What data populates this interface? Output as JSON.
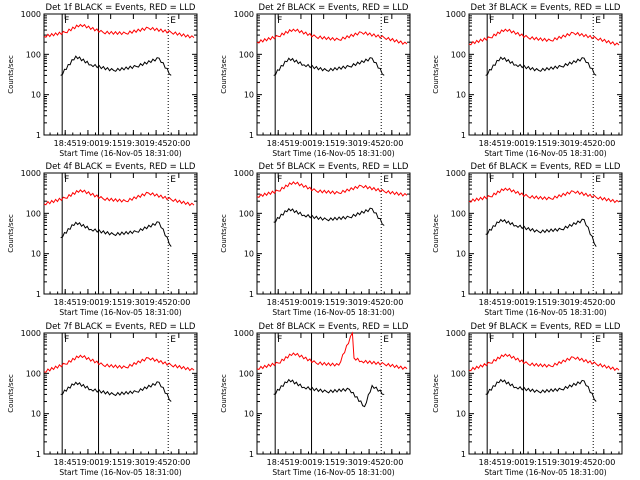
{
  "colors": {
    "events": "#000000",
    "lld": "#ff0000",
    "axes": "#000000",
    "background": "#ffffff"
  },
  "chart_data": [
    {
      "type": "line",
      "title": "Det 1f BLACK = Events, RED = LLD",
      "ylabel": "Counts/sec",
      "xlabel": "Start Time (16-Nov-05 18:31:00)",
      "xlim": [
        "18:31",
        "20:12"
      ],
      "ylim": [
        1,
        1000
      ],
      "yscale": "log",
      "xticks": [
        "18:45",
        "19:00",
        "19:15",
        "19:30",
        "19:45",
        "20:00"
      ],
      "yticks": [
        "1",
        "10",
        "100",
        "1000"
      ],
      "markers": [
        {
          "time": "18:43",
          "label": "F",
          "style": "solid"
        },
        {
          "time": "19:07",
          "label": "",
          "style": "solid"
        },
        {
          "time": "19:53",
          "label": "E",
          "style": "dotted"
        }
      ],
      "series": [
        {
          "name": "Events",
          "color": "#000000",
          "x": [
            "18:42",
            "18:52",
            "19:02",
            "19:17",
            "19:32",
            "19:47",
            "19:55"
          ],
          "values": [
            30,
            90,
            55,
            40,
            50,
            80,
            30
          ]
        },
        {
          "name": "LLD",
          "color": "#ff0000",
          "x": [
            "18:31",
            "18:45",
            "18:55",
            "19:10",
            "19:25",
            "19:40",
            "19:55",
            "20:10"
          ],
          "values": [
            280,
            350,
            550,
            350,
            330,
            450,
            350,
            260
          ]
        }
      ]
    },
    {
      "type": "line",
      "title": "Det 2f BLACK = Events, RED = LLD",
      "ylabel": "Counts/sec",
      "xlabel": "Start Time (16-Nov-05 18:31:00)",
      "xlim": [
        "18:31",
        "20:12"
      ],
      "ylim": [
        1,
        1000
      ],
      "yscale": "log",
      "xticks": [
        "18:45",
        "19:00",
        "19:15",
        "19:30",
        "19:45",
        "20:00"
      ],
      "yticks": [
        "1",
        "10",
        "100",
        "1000"
      ],
      "markers": [
        {
          "time": "18:43",
          "label": "F",
          "style": "solid"
        },
        {
          "time": "19:07",
          "label": "",
          "style": "solid"
        },
        {
          "time": "19:53",
          "label": "E",
          "style": "dotted"
        }
      ],
      "series": [
        {
          "name": "Events",
          "color": "#000000",
          "x": [
            "18:42",
            "18:52",
            "19:02",
            "19:17",
            "19:32",
            "19:47",
            "19:55"
          ],
          "values": [
            30,
            80,
            55,
            40,
            50,
            80,
            30
          ]
        },
        {
          "name": "LLD",
          "color": "#ff0000",
          "x": [
            "18:31",
            "18:45",
            "18:55",
            "19:10",
            "19:25",
            "19:40",
            "19:55",
            "20:10"
          ],
          "values": [
            200,
            280,
            420,
            270,
            230,
            350,
            260,
            180
          ]
        }
      ]
    },
    {
      "type": "line",
      "title": "Det 3f BLACK = Events, RED = LLD",
      "ylabel": "Counts/sec",
      "xlabel": "Start Time (16-Nov-05 18:31:00)",
      "xlim": [
        "18:31",
        "20:12"
      ],
      "ylim": [
        1,
        1000
      ],
      "yscale": "log",
      "xticks": [
        "18:45",
        "19:00",
        "19:15",
        "19:30",
        "19:45",
        "20:00"
      ],
      "yticks": [
        "1",
        "10",
        "100",
        "1000"
      ],
      "markers": [
        {
          "time": "18:43",
          "label": "F",
          "style": "solid"
        },
        {
          "time": "19:07",
          "label": "",
          "style": "solid"
        },
        {
          "time": "19:53",
          "label": "E",
          "style": "dotted"
        }
      ],
      "series": [
        {
          "name": "Events",
          "color": "#000000",
          "x": [
            "18:42",
            "18:52",
            "19:02",
            "19:17",
            "19:32",
            "19:47",
            "19:55"
          ],
          "values": [
            30,
            85,
            55,
            40,
            50,
            80,
            30
          ]
        },
        {
          "name": "LLD",
          "color": "#ff0000",
          "x": [
            "18:31",
            "18:45",
            "18:55",
            "19:10",
            "19:25",
            "19:40",
            "19:55",
            "20:10"
          ],
          "values": [
            180,
            260,
            420,
            260,
            220,
            340,
            250,
            170
          ]
        }
      ]
    },
    {
      "type": "line",
      "title": "Det 4f BLACK = Events, RED = LLD",
      "ylabel": "Counts/sec",
      "xlabel": "Start Time (16-Nov-05 18:31:00)",
      "xlim": [
        "18:31",
        "20:12"
      ],
      "ylim": [
        1,
        1000
      ],
      "yscale": "log",
      "xticks": [
        "18:45",
        "19:00",
        "19:15",
        "19:30",
        "19:45",
        "20:00"
      ],
      "yticks": [
        "1",
        "10",
        "100",
        "1000"
      ],
      "markers": [
        {
          "time": "18:43",
          "label": "F",
          "style": "solid"
        },
        {
          "time": "19:07",
          "label": "",
          "style": "solid"
        },
        {
          "time": "19:53",
          "label": "E",
          "style": "dotted"
        }
      ],
      "series": [
        {
          "name": "Events",
          "color": "#000000",
          "x": [
            "18:42",
            "18:52",
            "19:02",
            "19:17",
            "19:32",
            "19:47",
            "19:55"
          ],
          "values": [
            25,
            60,
            40,
            30,
            35,
            60,
            15
          ]
        },
        {
          "name": "LLD",
          "color": "#ff0000",
          "x": [
            "18:31",
            "18:45",
            "18:55",
            "19:10",
            "19:25",
            "19:40",
            "19:55",
            "20:10"
          ],
          "values": [
            170,
            240,
            380,
            230,
            200,
            320,
            220,
            160
          ]
        }
      ]
    },
    {
      "type": "line",
      "title": "Det 5f BLACK = Events, RED = LLD",
      "ylabel": "Counts/sec",
      "xlabel": "Start Time (16-Nov-05 18:31:00)",
      "xlim": [
        "18:31",
        "20:12"
      ],
      "ylim": [
        1,
        1000
      ],
      "yscale": "log",
      "xticks": [
        "18:45",
        "19:00",
        "19:15",
        "19:30",
        "19:45",
        "20:00"
      ],
      "yticks": [
        "1",
        "10",
        "100",
        "1000"
      ],
      "markers": [
        {
          "time": "18:43",
          "label": "F",
          "style": "solid"
        },
        {
          "time": "19:07",
          "label": "",
          "style": "solid"
        },
        {
          "time": "19:53",
          "label": "E",
          "style": "dotted"
        }
      ],
      "series": [
        {
          "name": "Events",
          "color": "#000000",
          "x": [
            "18:42",
            "18:52",
            "19:02",
            "19:17",
            "19:32",
            "19:47",
            "19:55"
          ],
          "values": [
            60,
            130,
            90,
            70,
            80,
            130,
            50
          ]
        },
        {
          "name": "LLD",
          "color": "#ff0000",
          "x": [
            "18:31",
            "18:45",
            "18:55",
            "19:10",
            "19:25",
            "19:40",
            "19:55",
            "20:10"
          ],
          "values": [
            260,
            360,
            600,
            360,
            320,
            480,
            350,
            280
          ]
        }
      ]
    },
    {
      "type": "line",
      "title": "Det 6f BLACK = Events, RED = LLD",
      "ylabel": "Counts/sec",
      "xlabel": "Start Time (16-Nov-05 18:31:00)",
      "xlim": [
        "18:31",
        "20:12"
      ],
      "ylim": [
        1,
        1000
      ],
      "yscale": "log",
      "xticks": [
        "18:45",
        "19:00",
        "19:15",
        "19:30",
        "19:45",
        "20:00"
      ],
      "yticks": [
        "1",
        "10",
        "100",
        "1000"
      ],
      "markers": [
        {
          "time": "18:43",
          "label": "F",
          "style": "solid"
        },
        {
          "time": "19:07",
          "label": "",
          "style": "solid"
        },
        {
          "time": "19:53",
          "label": "E",
          "style": "dotted"
        }
      ],
      "series": [
        {
          "name": "Events",
          "color": "#000000",
          "x": [
            "18:42",
            "18:52",
            "19:02",
            "19:17",
            "19:32",
            "19:47",
            "19:55"
          ],
          "values": [
            30,
            70,
            50,
            35,
            40,
            70,
            15
          ]
        },
        {
          "name": "LLD",
          "color": "#ff0000",
          "x": [
            "18:31",
            "18:45",
            "18:55",
            "19:10",
            "19:25",
            "19:40",
            "19:55",
            "20:10"
          ],
          "values": [
            200,
            260,
            420,
            260,
            230,
            350,
            250,
            190
          ]
        }
      ]
    },
    {
      "type": "line",
      "title": "Det 7f BLACK = Events, RED = LLD",
      "ylabel": "Counts/sec",
      "xlabel": "Start Time (16-Nov-05 18:31:00)",
      "xlim": [
        "18:31",
        "20:12"
      ],
      "ylim": [
        1,
        1000
      ],
      "yscale": "log",
      "xticks": [
        "18:45",
        "19:00",
        "19:15",
        "19:30",
        "19:45",
        "20:00"
      ],
      "yticks": [
        "1",
        "10",
        "100",
        "1000"
      ],
      "markers": [
        {
          "time": "18:43",
          "label": "F",
          "style": "solid"
        },
        {
          "time": "19:07",
          "label": "",
          "style": "solid"
        },
        {
          "time": "19:53",
          "label": "E",
          "style": "dotted"
        }
      ],
      "series": [
        {
          "name": "Events",
          "color": "#000000",
          "x": [
            "18:42",
            "18:52",
            "19:02",
            "19:17",
            "19:32",
            "19:47",
            "19:55"
          ],
          "values": [
            30,
            60,
            40,
            30,
            35,
            60,
            20
          ]
        },
        {
          "name": "LLD",
          "color": "#ff0000",
          "x": [
            "18:31",
            "18:45",
            "18:55",
            "19:10",
            "19:25",
            "19:40",
            "19:55",
            "20:10"
          ],
          "values": [
            110,
            170,
            280,
            160,
            140,
            240,
            160,
            120
          ]
        }
      ]
    },
    {
      "type": "line",
      "title": "Det 8f BLACK = Events, RED = LLD",
      "ylabel": "Counts/sec",
      "xlabel": "Start Time (16-Nov-05 18:31:00)",
      "xlim": [
        "18:31",
        "20:12"
      ],
      "ylim": [
        1,
        1000
      ],
      "yscale": "log",
      "xticks": [
        "18:45",
        "19:00",
        "19:15",
        "19:30",
        "19:45",
        "20:00"
      ],
      "yticks": [
        "1",
        "10",
        "100",
        "1000"
      ],
      "markers": [
        {
          "time": "18:43",
          "label": "F",
          "style": "solid"
        },
        {
          "time": "19:07",
          "label": "",
          "style": "solid"
        },
        {
          "time": "19:53",
          "label": "E",
          "style": "dotted"
        }
      ],
      "series": [
        {
          "name": "Events",
          "color": "#000000",
          "x": [
            "18:42",
            "18:52",
            "19:02",
            "19:17",
            "19:32",
            "19:42",
            "19:47",
            "19:55"
          ],
          "values": [
            30,
            70,
            45,
            35,
            40,
            15,
            50,
            30
          ]
        },
        {
          "name": "LLD",
          "color": "#ff0000",
          "x": [
            "18:31",
            "18:45",
            "18:55",
            "19:10",
            "19:25",
            "19:34",
            "19:35",
            "19:40",
            "19:55",
            "20:10"
          ],
          "values": [
            130,
            180,
            320,
            180,
            160,
            1000,
            240,
            200,
            170,
            130
          ]
        }
      ]
    },
    {
      "type": "line",
      "title": "Det 9f BLACK = Events, RED = LLD",
      "ylabel": "Counts/sec",
      "xlabel": "Start Time (16-Nov-05 18:31:00)",
      "xlim": [
        "18:31",
        "20:12"
      ],
      "ylim": [
        1,
        1000
      ],
      "yscale": "log",
      "xticks": [
        "18:45",
        "19:00",
        "19:15",
        "19:30",
        "19:45",
        "20:00"
      ],
      "yticks": [
        "1",
        "10",
        "100",
        "1000"
      ],
      "markers": [
        {
          "time": "18:43",
          "label": "F",
          "style": "solid"
        },
        {
          "time": "19:07",
          "label": "",
          "style": "solid"
        },
        {
          "time": "19:53",
          "label": "E",
          "style": "dotted"
        }
      ],
      "series": [
        {
          "name": "Events",
          "color": "#000000",
          "x": [
            "18:42",
            "18:52",
            "19:02",
            "19:17",
            "19:32",
            "19:47",
            "19:55"
          ],
          "values": [
            30,
            70,
            45,
            35,
            40,
            65,
            20
          ]
        },
        {
          "name": "LLD",
          "color": "#ff0000",
          "x": [
            "18:31",
            "18:45",
            "18:55",
            "19:10",
            "19:25",
            "19:40",
            "19:55",
            "20:10"
          ],
          "values": [
            120,
            180,
            300,
            170,
            150,
            250,
            170,
            120
          ]
        }
      ]
    }
  ]
}
